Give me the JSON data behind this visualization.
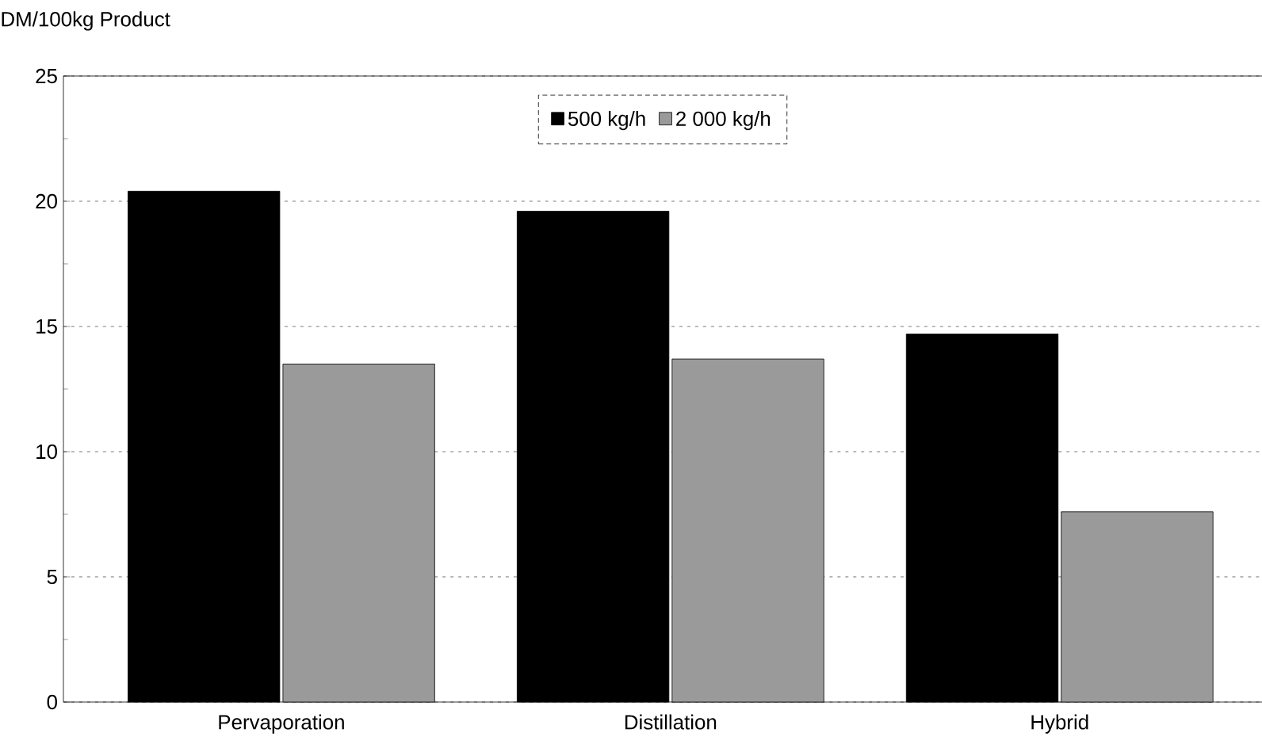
{
  "chart_data": {
    "type": "bar",
    "ylabel": "DM/100kg Product",
    "categories": [
      "Pervaporation",
      "Distillation",
      "Hybrid"
    ],
    "series": [
      {
        "name": "500 kg/h",
        "color": "#000000",
        "values": [
          20.4,
          19.6,
          14.7
        ]
      },
      {
        "name": "2 000 kg/h",
        "color": "#9a9a9a",
        "values": [
          13.5,
          13.7,
          7.6
        ]
      }
    ],
    "ylim": [
      0,
      25
    ],
    "yticks": [
      0,
      5,
      10,
      15,
      20,
      25
    ],
    "grid": "y",
    "legend": "top"
  }
}
